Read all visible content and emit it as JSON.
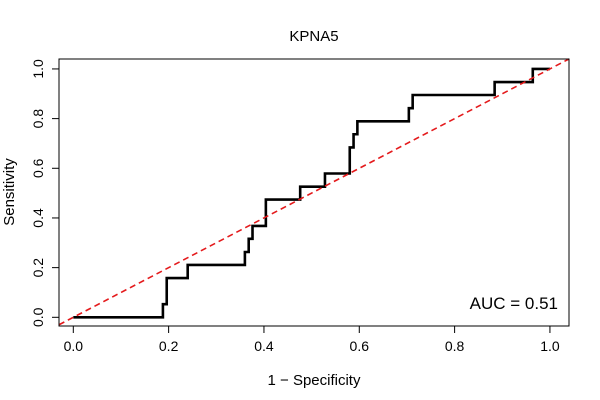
{
  "chart_data": {
    "type": "line",
    "title": "KPNA5",
    "xlabel": "1 − Specificity",
    "ylabel": "Sensitivity",
    "xlim": [
      -0.03,
      1.04
    ],
    "ylim": [
      -0.035,
      1.04
    ],
    "xticks": [
      0.0,
      0.2,
      0.4,
      0.6,
      0.8,
      1.0
    ],
    "xtick_labels": [
      "0.0",
      "0.2",
      "0.4",
      "0.6",
      "0.8",
      "1.0"
    ],
    "yticks": [
      0.0,
      0.2,
      0.4,
      0.6,
      0.8,
      1.0
    ],
    "ytick_labels": [
      "0.0",
      "0.2",
      "0.4",
      "0.6",
      "0.8",
      "1.0"
    ],
    "grid": false,
    "annotation": "AUC = 0.51",
    "series": [
      {
        "role": "roc-curve",
        "color": "#000000",
        "x": [
          0.0,
          0.188,
          0.188,
          0.196,
          0.196,
          0.24,
          0.24,
          0.36,
          0.36,
          0.368,
          0.368,
          0.376,
          0.376,
          0.404,
          0.404,
          0.476,
          0.476,
          0.528,
          0.528,
          0.58,
          0.58,
          0.588,
          0.588,
          0.596,
          0.596,
          0.704,
          0.704,
          0.712,
          0.712,
          0.884,
          0.884,
          0.964,
          0.964,
          1.0
        ],
        "y": [
          0.0,
          0.0,
          0.053,
          0.053,
          0.158,
          0.158,
          0.211,
          0.211,
          0.263,
          0.263,
          0.316,
          0.316,
          0.368,
          0.368,
          0.474,
          0.474,
          0.526,
          0.526,
          0.579,
          0.579,
          0.684,
          0.684,
          0.737,
          0.737,
          0.789,
          0.789,
          0.842,
          0.842,
          0.895,
          0.895,
          0.947,
          0.947,
          1.0,
          1.0
        ]
      },
      {
        "role": "reference-diagonal",
        "color": "#e41a1c",
        "dashed": true,
        "x": [
          -0.03,
          1.04
        ],
        "y": [
          -0.03,
          1.04
        ]
      }
    ]
  }
}
